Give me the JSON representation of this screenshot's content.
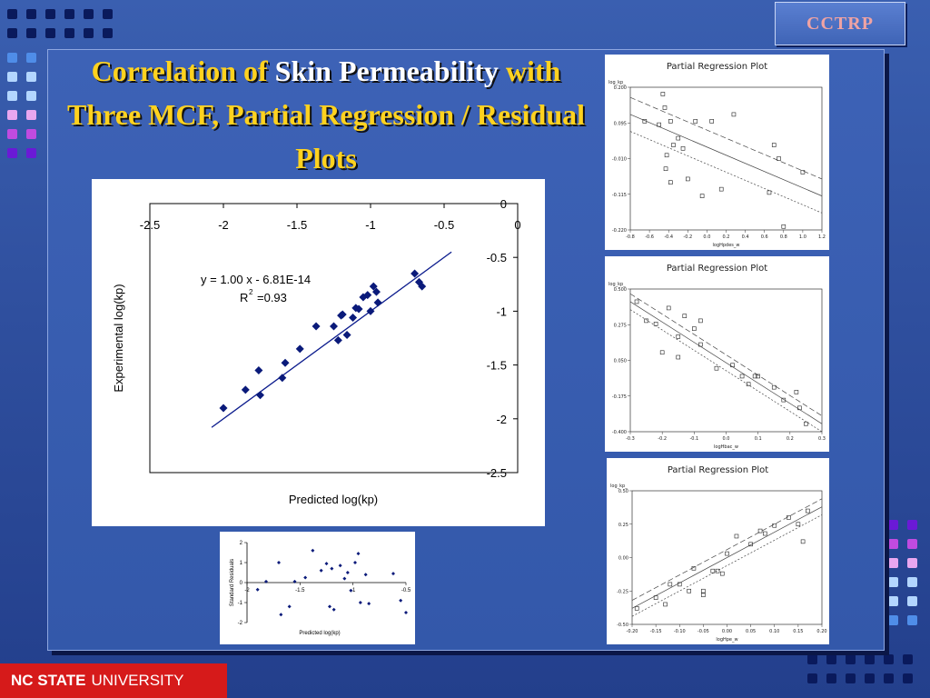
{
  "slide": {
    "title_part1": "Correlation of",
    "title_part2": "Skin Permeability",
    "title_part3": "with Three MCF, Partial Regression / Residual Plots",
    "logo_text": "CCTRP",
    "footer_bold": "NC STATE",
    "footer_rest": "UNIVERSITY"
  },
  "chart_data": [
    {
      "type": "scatter",
      "title": "",
      "xlabel": "Predicted log(kp)",
      "ylabel": "Experimental log(kp)",
      "xlim": [
        -2.5,
        0
      ],
      "ylim": [
        -2.5,
        0
      ],
      "x_ticks": [
        "-2.5",
        "-2",
        "-1.5",
        "-1",
        "-0.5",
        "0"
      ],
      "y_ticks": [
        "0",
        "-0.5",
        "-1",
        "-1.5",
        "-2",
        "-2.5"
      ],
      "equation": "y = 1.00 x  - 6.81E-14",
      "r2_base": "R",
      "r2_sup": "2",
      "r2_value": "=0.93",
      "trendline": {
        "slope": 1.0,
        "intercept": 0.0,
        "x_range": [
          -2.08,
          -0.45
        ]
      },
      "points": [
        [
          -2.0,
          -1.9
        ],
        [
          -1.85,
          -1.73
        ],
        [
          -1.76,
          -1.55
        ],
        [
          -1.75,
          -1.78
        ],
        [
          -1.6,
          -1.62
        ],
        [
          -1.58,
          -1.48
        ],
        [
          -1.48,
          -1.35
        ],
        [
          -1.37,
          -1.14
        ],
        [
          -1.25,
          -1.14
        ],
        [
          -1.22,
          -1.27
        ],
        [
          -1.2,
          -1.04
        ],
        [
          -1.19,
          -1.03
        ],
        [
          -1.16,
          -1.22
        ],
        [
          -1.12,
          -1.06
        ],
        [
          -1.1,
          -0.97
        ],
        [
          -1.08,
          -0.98
        ],
        [
          -1.05,
          -0.87
        ],
        [
          -1.02,
          -0.85
        ],
        [
          -1.0,
          -1.0
        ],
        [
          -0.98,
          -0.77
        ],
        [
          -0.96,
          -0.82
        ],
        [
          -0.95,
          -0.92
        ],
        [
          -0.7,
          -0.65
        ],
        [
          -0.67,
          -0.73
        ],
        [
          -0.65,
          -0.77
        ]
      ]
    },
    {
      "type": "scatter",
      "title": "",
      "xlabel": "Predicted log(kp)",
      "ylabel": "Standard Residuals",
      "xlim": [
        -2,
        -0.5
      ],
      "ylim": [
        -2,
        2
      ],
      "x_ticks": [
        "-2",
        "-1.5",
        "-1",
        "-0.5"
      ],
      "y_ticks": [
        "2",
        "1",
        "0",
        "-1",
        "-2"
      ],
      "points": [
        [
          -1.9,
          -0.35
        ],
        [
          -1.82,
          0.05
        ],
        [
          -1.7,
          1.0
        ],
        [
          -1.68,
          -1.6
        ],
        [
          -1.6,
          -1.2
        ],
        [
          -1.55,
          0.05
        ],
        [
          -1.45,
          0.25
        ],
        [
          -1.38,
          1.6
        ],
        [
          -1.3,
          0.6
        ],
        [
          -1.25,
          0.95
        ],
        [
          -1.2,
          0.7
        ],
        [
          -1.22,
          -1.2
        ],
        [
          -1.18,
          -1.35
        ],
        [
          -1.12,
          0.85
        ],
        [
          -1.08,
          0.2
        ],
        [
          -1.05,
          0.5
        ],
        [
          -1.02,
          -0.4
        ],
        [
          -0.98,
          1.0
        ],
        [
          -0.95,
          1.45
        ],
        [
          -0.93,
          -1.0
        ],
        [
          -0.88,
          0.4
        ],
        [
          -0.85,
          -1.05
        ],
        [
          -0.62,
          0.45
        ],
        [
          -0.55,
          -0.9
        ],
        [
          -0.5,
          -1.5
        ]
      ]
    },
    {
      "type": "scatter",
      "title": "Partial Regression Plot",
      "xlabel": "logHpdes_w",
      "ylabel": "log_kp_",
      "xlim": [
        -0.8,
        1.2
      ],
      "ylim": [
        -0.22,
        0.2
      ],
      "x_ticks": [
        "-0.8",
        "-0.6",
        "-0.4",
        "-0.2",
        "0.0",
        "0.2",
        "0.4",
        "0.6",
        "0.8",
        "1.0",
        "1.2"
      ],
      "y_ticks": [
        "0.200",
        "0.095",
        "-0.010",
        "-0.115",
        "-0.220"
      ],
      "points": [
        [
          -0.65,
          0.1
        ],
        [
          -0.5,
          0.09
        ],
        [
          -0.46,
          0.18
        ],
        [
          -0.44,
          0.14
        ],
        [
          -0.38,
          0.1
        ],
        [
          -0.42,
          0.0
        ],
        [
          -0.43,
          -0.04
        ],
        [
          -0.38,
          -0.08
        ],
        [
          -0.35,
          0.03
        ],
        [
          -0.3,
          0.05
        ],
        [
          -0.25,
          0.02
        ],
        [
          -0.2,
          -0.07
        ],
        [
          -0.12,
          0.1
        ],
        [
          -0.05,
          -0.12
        ],
        [
          0.05,
          0.1
        ],
        [
          0.15,
          -0.1
        ],
        [
          0.28,
          0.12
        ],
        [
          0.7,
          0.03
        ],
        [
          0.75,
          -0.01
        ],
        [
          0.65,
          -0.11
        ],
        [
          0.8,
          -0.21
        ],
        [
          1.0,
          -0.05
        ]
      ]
    },
    {
      "type": "scatter",
      "title": "Partial Regression Plot",
      "xlabel": "logHbac_w",
      "ylabel": "log_kp_",
      "xlim": [
        -0.3,
        0.3
      ],
      "ylim": [
        -0.4,
        0.5
      ],
      "x_ticks": [
        "-0.3",
        "-0.2",
        "-0.1",
        "0.0",
        "0.1",
        "0.2",
        "0.3"
      ],
      "y_ticks": [
        "0.500",
        "0.275",
        "0.050",
        "-0.175",
        "-0.400"
      ],
      "points": [
        [
          -0.28,
          0.42
        ],
        [
          -0.25,
          0.3
        ],
        [
          -0.22,
          0.28
        ],
        [
          -0.18,
          0.38
        ],
        [
          -0.15,
          0.2
        ],
        [
          -0.13,
          0.33
        ],
        [
          -0.1,
          0.25
        ],
        [
          -0.08,
          0.15
        ],
        [
          -0.2,
          0.1
        ],
        [
          -0.15,
          0.07
        ],
        [
          -0.08,
          0.3
        ],
        [
          -0.03,
          0.0
        ],
        [
          0.02,
          0.02
        ],
        [
          0.05,
          -0.05
        ],
        [
          0.07,
          -0.1
        ],
        [
          0.09,
          -0.05
        ],
        [
          0.1,
          -0.05
        ],
        [
          0.15,
          -0.12
        ],
        [
          0.18,
          -0.2
        ],
        [
          0.22,
          -0.15
        ],
        [
          0.23,
          -0.25
        ],
        [
          0.25,
          -0.35
        ]
      ]
    },
    {
      "type": "scatter",
      "title": "Partial Regression Plot",
      "xlabel": "logHpe_w",
      "ylabel": "log_kp_",
      "xlim": [
        -0.2,
        0.2
      ],
      "ylim": [
        -0.5,
        0.5
      ],
      "x_ticks": [
        "-0.20",
        "-0.15",
        "-0.10",
        "-0.05",
        "0.00",
        "0.05",
        "0.10",
        "0.15",
        "0.20"
      ],
      "y_ticks": [
        "0.50",
        "0.25",
        "0.00",
        "-0.25",
        "-0.50"
      ],
      "points": [
        [
          -0.19,
          -0.38
        ],
        [
          -0.15,
          -0.3
        ],
        [
          -0.13,
          -0.35
        ],
        [
          -0.12,
          -0.2
        ],
        [
          -0.1,
          -0.2
        ],
        [
          -0.08,
          -0.25
        ],
        [
          -0.07,
          -0.08
        ],
        [
          -0.05,
          -0.25
        ],
        [
          -0.05,
          -0.28
        ],
        [
          -0.03,
          -0.1
        ],
        [
          -0.02,
          -0.1
        ],
        [
          -0.01,
          -0.12
        ],
        [
          0.0,
          0.03
        ],
        [
          0.02,
          0.16
        ],
        [
          0.05,
          0.1
        ],
        [
          0.07,
          0.2
        ],
        [
          0.08,
          0.18
        ],
        [
          0.1,
          0.24
        ],
        [
          0.13,
          0.3
        ],
        [
          0.15,
          0.25
        ],
        [
          0.16,
          0.12
        ],
        [
          0.17,
          0.35
        ]
      ]
    }
  ]
}
